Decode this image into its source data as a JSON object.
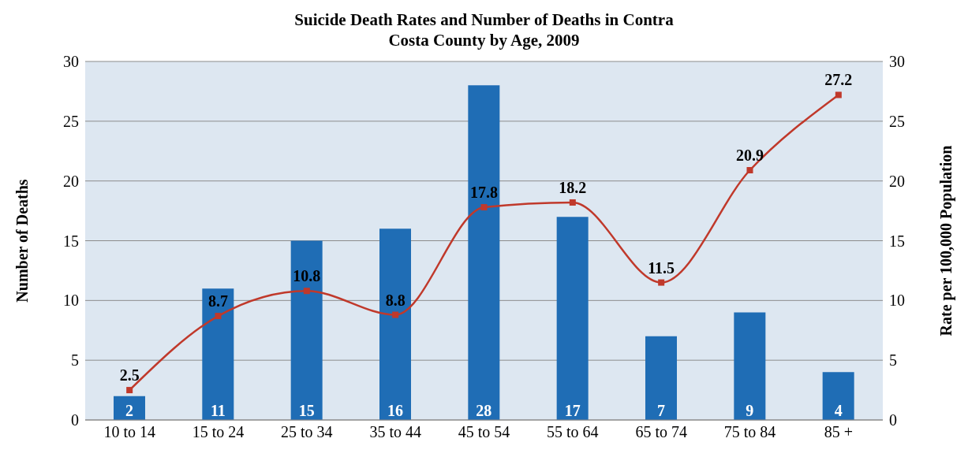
{
  "chart_data": {
    "type": "bar",
    "title": "Suicide Death Rates and Number of Deaths in Contra Costa County by Age, 2009",
    "ylabel": "Number of Deaths",
    "y2label": "Rate per 100,000 Population",
    "categories": [
      "10 to 14",
      "15 to 24",
      "25 to 34",
      "35 to 44",
      "45 to 54",
      "55 to 64",
      "65 to 74",
      "75 to 84",
      "85 +"
    ],
    "series": [
      {
        "color": "#1f6db5",
        "values": [
          2,
          11,
          15,
          16,
          28,
          17,
          7,
          9,
          4
        ]
      },
      {
        "type": "line",
        "axis": "y2",
        "color": "#c0392b",
        "values": [
          2.5,
          8.7,
          10.8,
          8.8,
          17.8,
          18.2,
          11.5,
          20.9,
          27.2
        ]
      }
    ],
    "ylim": [
      0,
      30
    ],
    "yticks": [
      0,
      5,
      10,
      15,
      20,
      25,
      30
    ],
    "y2lim": [
      0,
      30
    ],
    "y2ticks": [
      0,
      5,
      10,
      15,
      20,
      25,
      30
    ],
    "grid": "y",
    "data_labels": true,
    "marker": "square",
    "line_style": "solid",
    "legend": false
  }
}
